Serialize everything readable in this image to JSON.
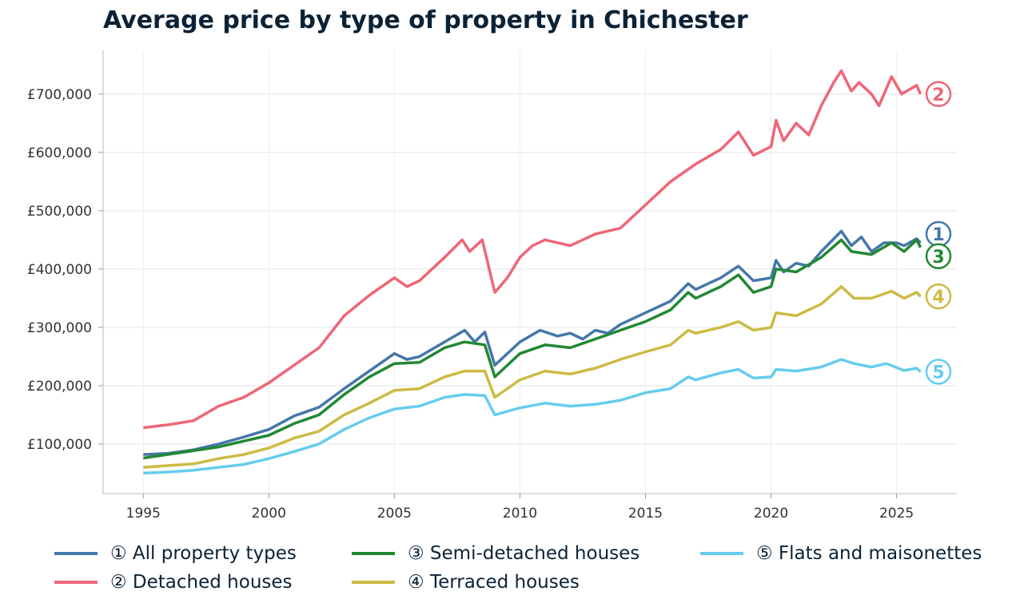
{
  "chart_data": {
    "type": "line",
    "title": "Average price by type of property in Chichester",
    "xlabel": "",
    "ylabel": "",
    "xlim": [
      1993.4,
      2027.4
    ],
    "ylim": [
      15000,
      775000
    ],
    "x_ticks": [
      1995,
      2000,
      2005,
      2010,
      2015,
      2020,
      2025
    ],
    "y_ticks": [
      100000,
      200000,
      300000,
      400000,
      500000,
      600000,
      700000
    ],
    "y_tick_labels": [
      "£100,000",
      "£200,000",
      "£300,000",
      "£400,000",
      "£500,000",
      "£600,000",
      "£700,000"
    ],
    "grid": true,
    "legend_placement": "bottom",
    "series": [
      {
        "name": "① All property types",
        "marker": "①",
        "color": "#4477aa",
        "x": [
          1995,
          1996,
          1997,
          1998,
          1999,
          2000,
          2001,
          2002,
          2003,
          2004,
          2005,
          2005.5,
          2006,
          2007,
          2007.8,
          2008.2,
          2008.6,
          2009,
          2009.5,
          2010,
          2010.8,
          2011.5,
          2012,
          2012.5,
          2013,
          2013.5,
          2014,
          2015,
          2016,
          2016.7,
          2017,
          2018,
          2018.7,
          2019.3,
          2020,
          2020.2,
          2020.5,
          2021,
          2021.5,
          2022,
          2022.8,
          2023.2,
          2023.6,
          2024,
          2024.5,
          2025,
          2025.3,
          2025.8,
          2025.95
        ],
        "y": [
          82000,
          84000,
          90000,
          100000,
          112000,
          125000,
          148000,
          163000,
          195000,
          225000,
          255000,
          245000,
          250000,
          275000,
          295000,
          275000,
          292000,
          235000,
          255000,
          275000,
          295000,
          285000,
          290000,
          280000,
          295000,
          290000,
          305000,
          325000,
          345000,
          375000,
          365000,
          385000,
          405000,
          380000,
          385000,
          415000,
          395000,
          410000,
          405000,
          430000,
          465000,
          440000,
          455000,
          430000,
          445000,
          445000,
          440000,
          452000,
          445000
        ]
      },
      {
        "name": "② Detached houses",
        "marker": "②",
        "color": "#ee6677",
        "x": [
          1995,
          1996,
          1997,
          1998,
          1999,
          2000,
          2001,
          2002,
          2003,
          2004,
          2005,
          2005.5,
          2006,
          2007,
          2007.7,
          2008,
          2008.5,
          2009,
          2009.5,
          2010,
          2010.5,
          2011,
          2012,
          2012.5,
          2013,
          2014,
          2015,
          2016,
          2017,
          2018,
          2018.7,
          2019.3,
          2020,
          2020.2,
          2020.5,
          2021,
          2021.5,
          2022,
          2022.5,
          2022.8,
          2023.2,
          2023.5,
          2024,
          2024.3,
          2024.8,
          2025.2,
          2025.8,
          2025.95
        ],
        "y": [
          128000,
          133000,
          140000,
          165000,
          180000,
          205000,
          235000,
          265000,
          320000,
          355000,
          385000,
          370000,
          380000,
          420000,
          450000,
          430000,
          450000,
          360000,
          385000,
          420000,
          440000,
          450000,
          440000,
          450000,
          460000,
          470000,
          510000,
          550000,
          580000,
          605000,
          635000,
          595000,
          610000,
          655000,
          620000,
          650000,
          630000,
          680000,
          720000,
          740000,
          705000,
          720000,
          700000,
          680000,
          730000,
          700000,
          715000,
          700000
        ]
      },
      {
        "name": "③ Semi-detached houses",
        "marker": "③",
        "color": "#228833",
        "x": [
          1995,
          1998,
          2000,
          2001,
          2002,
          2003,
          2004,
          2005,
          2006,
          2007,
          2007.8,
          2008.6,
          2009,
          2010,
          2011,
          2012,
          2013,
          2014,
          2015,
          2016,
          2016.7,
          2017,
          2018,
          2018.7,
          2019.3,
          2020,
          2020.2,
          2021,
          2022,
          2022.8,
          2023.2,
          2024,
          2024.8,
          2025.3,
          2025.8,
          2025.95
        ],
        "y": [
          76000,
          95000,
          115000,
          135000,
          150000,
          185000,
          215000,
          238000,
          240000,
          265000,
          275000,
          270000,
          215000,
          255000,
          270000,
          265000,
          280000,
          295000,
          310000,
          330000,
          360000,
          350000,
          370000,
          390000,
          360000,
          370000,
          400000,
          395000,
          420000,
          450000,
          430000,
          425000,
          445000,
          430000,
          450000,
          437000
        ]
      },
      {
        "name": "④ Terraced houses",
        "marker": "④",
        "color": "#ccbb44",
        "x": [
          1995,
          1996,
          1997,
          1998,
          1999,
          2000,
          2001,
          2002,
          2003,
          2004,
          2005,
          2006,
          2007,
          2007.8,
          2008.6,
          2009,
          2010,
          2011,
          2012,
          2013,
          2014,
          2015,
          2016,
          2016.7,
          2017,
          2018,
          2018.7,
          2019.3,
          2020,
          2020.2,
          2021,
          2022,
          2022.8,
          2023.3,
          2024,
          2024.8,
          2025.3,
          2025.8,
          2025.95
        ],
        "y": [
          60000,
          63000,
          66000,
          75000,
          82000,
          93000,
          110000,
          122000,
          150000,
          170000,
          192000,
          195000,
          215000,
          225000,
          225000,
          180000,
          210000,
          225000,
          220000,
          230000,
          245000,
          258000,
          270000,
          295000,
          290000,
          300000,
          310000,
          295000,
          300000,
          325000,
          320000,
          340000,
          370000,
          350000,
          350000,
          362000,
          350000,
          360000,
          353000
        ]
      },
      {
        "name": "⑤ Flats and maisonettes",
        "marker": "⑤",
        "color": "#66ccee",
        "x": [
          1995,
          1996,
          1997,
          1998,
          1999,
          2000,
          2001,
          2002,
          2003,
          2004,
          2005,
          2006,
          2007,
          2007.8,
          2008.6,
          2009,
          2010,
          2011,
          2012,
          2013,
          2014,
          2015,
          2016,
          2016.7,
          2017,
          2018,
          2018.7,
          2019.3,
          2020,
          2020.2,
          2021,
          2022,
          2022.8,
          2023.3,
          2024,
          2024.6,
          2025.3,
          2025.8,
          2025.95
        ],
        "y": [
          50000,
          52000,
          55000,
          60000,
          65000,
          75000,
          87000,
          100000,
          125000,
          145000,
          160000,
          165000,
          180000,
          185000,
          183000,
          150000,
          162000,
          170000,
          165000,
          168000,
          175000,
          188000,
          195000,
          215000,
          210000,
          222000,
          228000,
          213000,
          215000,
          228000,
          225000,
          232000,
          245000,
          238000,
          232000,
          238000,
          226000,
          230000,
          224000
        ]
      }
    ]
  }
}
